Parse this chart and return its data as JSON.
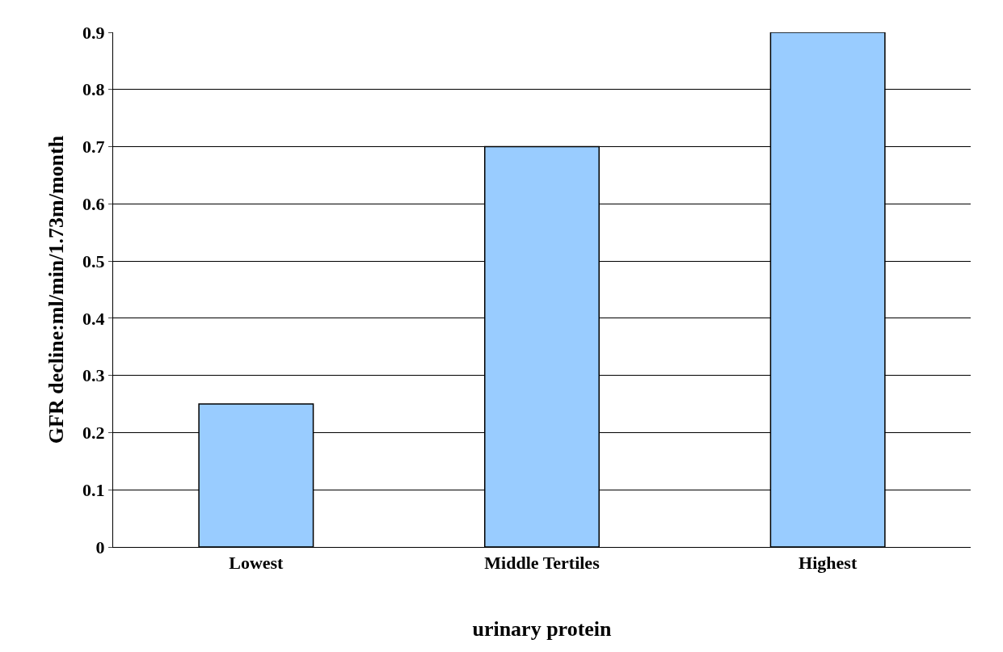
{
  "chart_data": {
    "type": "bar",
    "xlabel": "urinary protein",
    "ylabel": "GFR decline:ml/min/1.73m/month",
    "categories": [
      "Lowest",
      "Middle Tertiles",
      "Highest"
    ],
    "values": [
      0.25,
      0.7,
      0.9
    ],
    "color": "#99ccff",
    "ylim": [
      0,
      0.9
    ],
    "yticks": [
      0,
      0.1,
      0.2,
      0.3,
      0.4,
      0.5,
      0.6,
      0.7,
      0.8,
      0.9
    ],
    "grid": "y",
    "legend": false
  }
}
